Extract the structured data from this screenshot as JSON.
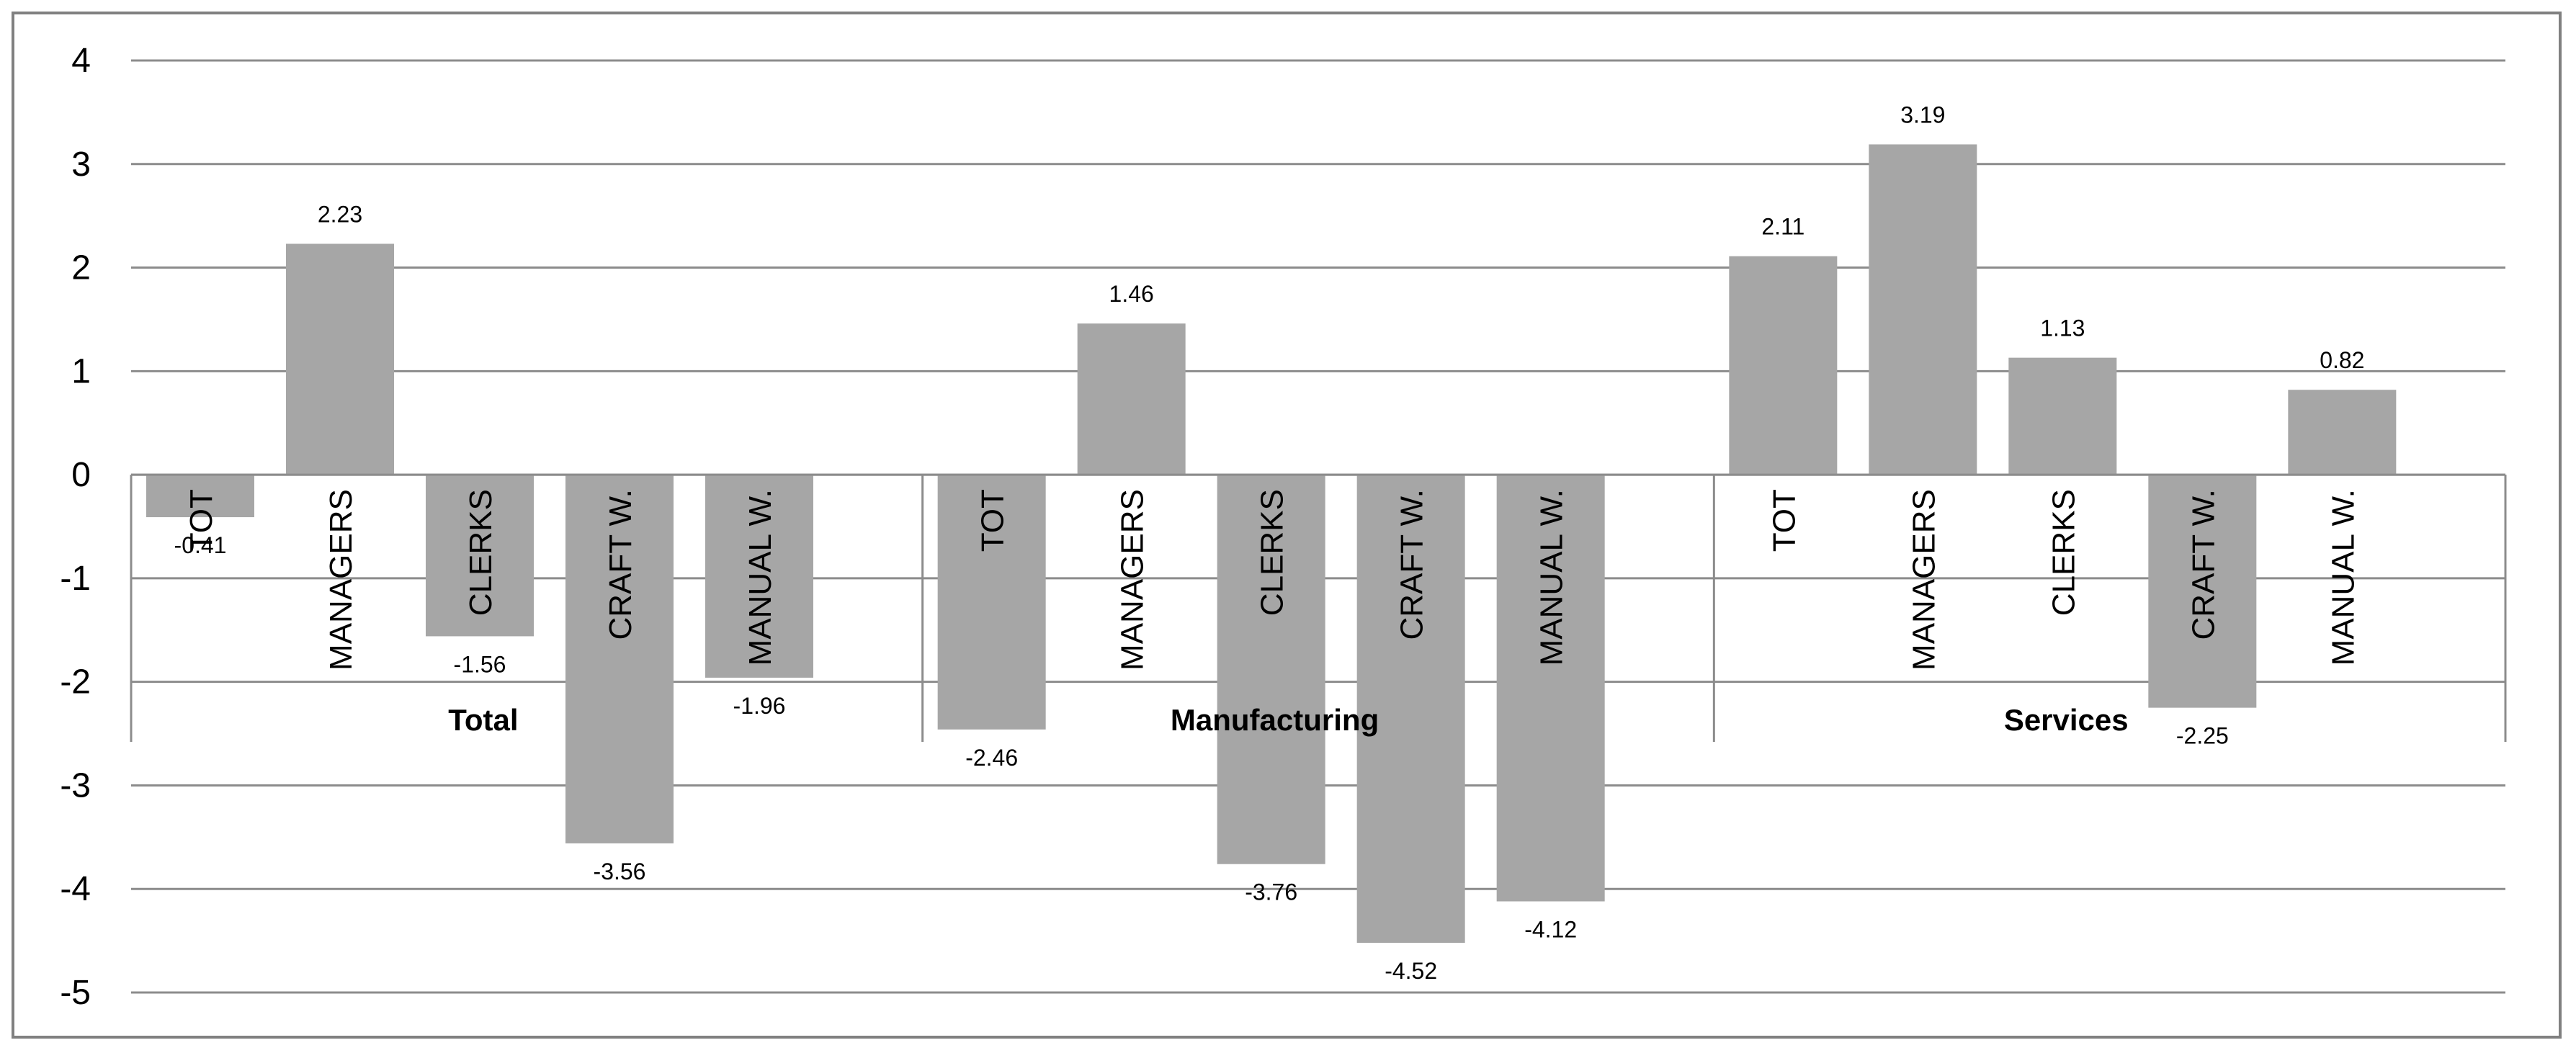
{
  "chart_data": {
    "type": "bar",
    "title": "",
    "xlabel": "",
    "ylabel": "",
    "ylim": [
      -5,
      4
    ],
    "yticks": [
      4,
      3,
      2,
      1,
      0,
      -1,
      -2,
      -3,
      -4,
      -5
    ],
    "grid": true,
    "legend": "none",
    "bar_color": "#a6a6a6",
    "groups": [
      {
        "name": "Total",
        "categories": [
          "TOT",
          "MANAGERS",
          "CLERKS",
          "CRAFT W.",
          "MANUAL W."
        ],
        "values": [
          -0.41,
          2.23,
          -1.56,
          -3.56,
          -1.96
        ],
        "labels": [
          "-0.41",
          "2.23",
          "-1.56",
          "-3.56",
          "-1.96"
        ]
      },
      {
        "name": "Manufacturing",
        "categories": [
          "TOT",
          "MANAGERS",
          "CLERKS",
          "CRAFT W.",
          "MANUAL W."
        ],
        "values": [
          -2.46,
          1.46,
          -3.76,
          -4.52,
          -4.12
        ],
        "labels": [
          "-2.46",
          "1.46",
          "-3.76",
          "-4.52",
          "-4.12"
        ]
      },
      {
        "name": "Services",
        "categories": [
          "TOT",
          "MANAGERS",
          "CLERKS",
          "CRAFT W.",
          "MANUAL W."
        ],
        "values": [
          2.11,
          3.19,
          1.13,
          -2.25,
          0.82
        ],
        "labels": [
          "2.11",
          "3.19",
          "1.13",
          "-2.25",
          "0.82"
        ]
      }
    ]
  }
}
